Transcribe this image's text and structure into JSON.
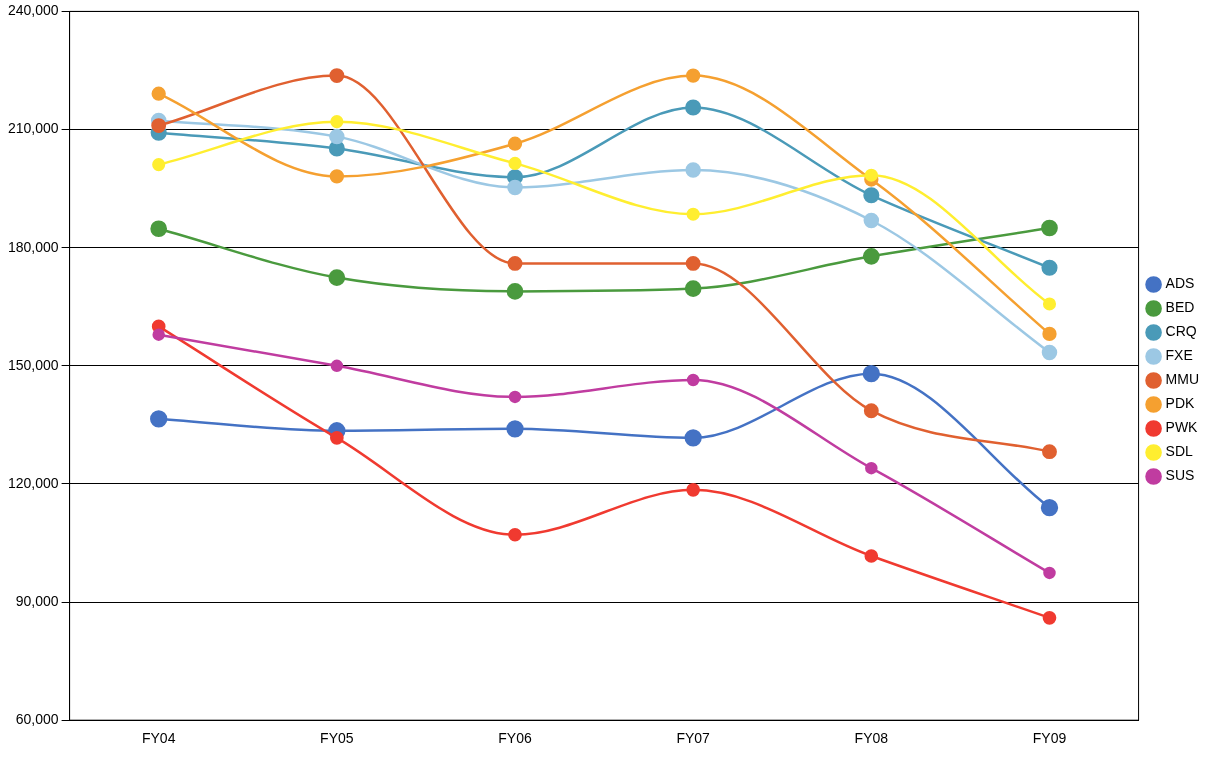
{
  "chart_data": {
    "type": "line",
    "categories": [
      "FY04",
      "FY05",
      "FY06",
      "FY07",
      "FY08",
      "FY09"
    ],
    "series": [
      {
        "name": "ADS",
        "color": "#4472c4",
        "values": [
          136500,
          133500,
          134000,
          131700,
          148000,
          114000
        ]
      },
      {
        "name": "BED",
        "color": "#4a9a3e",
        "values": [
          184800,
          172400,
          168900,
          169600,
          177800,
          185000
        ]
      },
      {
        "name": "CRQ",
        "color": "#4a9ab8",
        "values": [
          209200,
          205200,
          197900,
          215600,
          193300,
          174900
        ]
      },
      {
        "name": "FXE",
        "color": "#9cc8e4",
        "values": [
          212300,
          208200,
          195300,
          199700,
          186900,
          153400
        ]
      },
      {
        "name": "MMU",
        "color": "#e06030",
        "values": [
          211000,
          223700,
          176000,
          176000,
          138600,
          128200
        ]
      },
      {
        "name": "PDK",
        "color": "#f5a030",
        "values": [
          219100,
          198100,
          206400,
          223700,
          197300,
          158100
        ]
      },
      {
        "name": "PWK",
        "color": "#f03a30",
        "values": [
          160000,
          131700,
          107100,
          118500,
          101700,
          86000
        ]
      },
      {
        "name": "SDL",
        "color": "#ffee30",
        "values": [
          201100,
          212000,
          201400,
          188500,
          198400,
          165700
        ]
      },
      {
        "name": "SUS",
        "color": "#c03ca0",
        "values": [
          157900,
          150000,
          142100,
          146400,
          124000,
          97400
        ]
      }
    ],
    "ylim": [
      60000,
      240000
    ],
    "yticks": [
      {
        "value": 60000,
        "label": "60,000"
      },
      {
        "value": 90000,
        "label": "90,000"
      },
      {
        "value": 120000,
        "label": "120,000"
      },
      {
        "value": 150000,
        "label": "150,000"
      },
      {
        "value": 180000,
        "label": "180,000"
      },
      {
        "value": 210000,
        "label": "210,000"
      },
      {
        "value": 240000,
        "label": "240,000"
      }
    ],
    "grid": "y",
    "legend": "right",
    "marker": "circle",
    "line_style": "solid"
  }
}
